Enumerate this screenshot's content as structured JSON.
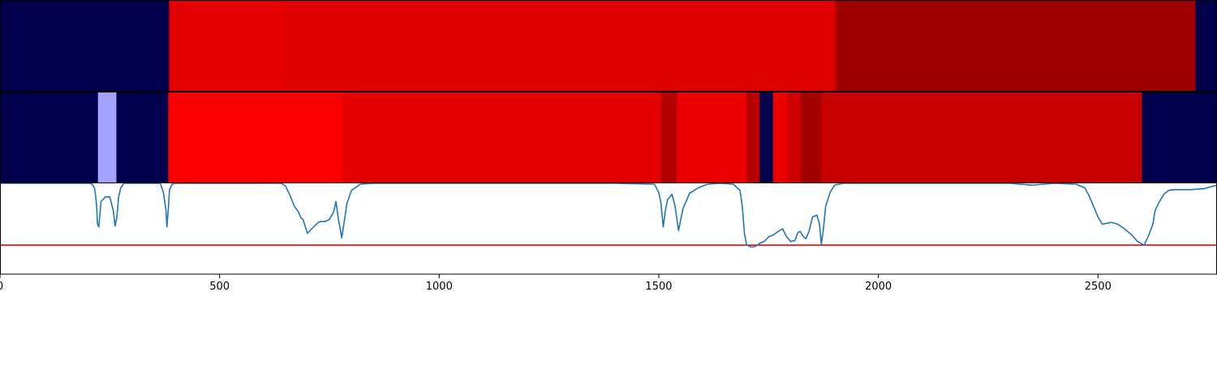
{
  "chart_data": {
    "type": "heatmap",
    "title": "",
    "xlabel": "",
    "ylabel": "",
    "xlim": [
      0,
      2771
    ],
    "x_ticks": [
      0,
      500,
      1000,
      1500,
      2000,
      2500
    ],
    "x_tick_labels": [
      "0",
      "500",
      "1000",
      "1500",
      "2000",
      "2500"
    ],
    "colormap": {
      "name": "seismic",
      "stops": [
        "#00004c",
        "#0000ff",
        "#ffffff",
        "#ff0000",
        "#7f0000"
      ],
      "vmin": 0,
      "vmax": 1
    },
    "heatmap_rows": [
      {
        "segments": [
          {
            "x0": 0,
            "x1": 385,
            "value": 0.0
          },
          {
            "x0": 385,
            "x1": 650,
            "value": 0.8
          },
          {
            "x0": 650,
            "x1": 1902,
            "value": 0.81
          },
          {
            "x0": 1902,
            "x1": 2722,
            "value": 0.94
          },
          {
            "x0": 2722,
            "x1": 2771,
            "value": 0.0
          }
        ]
      },
      {
        "segments": [
          {
            "x0": 0,
            "x1": 223,
            "value": 0.0
          },
          {
            "x0": 223,
            "x1": 265,
            "value": 0.41
          },
          {
            "x0": 265,
            "x1": 383,
            "value": 0.0
          },
          {
            "x0": 383,
            "x1": 780,
            "value": 0.76
          },
          {
            "x0": 780,
            "x1": 1505,
            "value": 0.8
          },
          {
            "x0": 1505,
            "x1": 1541,
            "value": 0.9
          },
          {
            "x0": 1541,
            "x1": 1700,
            "value": 0.79
          },
          {
            "x0": 1700,
            "x1": 1730,
            "value": 0.89
          },
          {
            "x0": 1730,
            "x1": 1760,
            "value": 0.0
          },
          {
            "x0": 1760,
            "x1": 1792,
            "value": 0.79
          },
          {
            "x0": 1792,
            "x1": 1823,
            "value": 0.84
          },
          {
            "x0": 1823,
            "x1": 1870,
            "value": 0.93
          },
          {
            "x0": 1870,
            "x1": 2600,
            "value": 0.86
          },
          {
            "x0": 2600,
            "x1": 2771,
            "value": 0.0
          }
        ]
      }
    ],
    "line_plot": {
      "ylim": [
        0,
        1
      ],
      "threshold": 0.32,
      "threshold_color": "#ff0000",
      "line_color": "#1f77b4",
      "x": [
        0,
        205,
        210,
        215,
        218,
        220,
        222,
        225,
        230,
        240,
        250,
        258,
        262,
        266,
        270,
        275,
        282,
        300,
        365,
        372,
        378,
        380,
        383,
        386,
        392,
        400,
        500,
        600,
        640,
        650,
        660,
        670,
        680,
        685,
        690,
        700,
        710,
        720,
        725,
        730,
        740,
        750,
        760,
        765,
        770,
        775,
        778,
        782,
        790,
        800,
        820,
        850,
        1000,
        1400,
        1490,
        1500,
        1505,
        1510,
        1515,
        1520,
        1530,
        1537,
        1545,
        1555,
        1570,
        1590,
        1610,
        1640,
        1670,
        1685,
        1690,
        1695,
        1700,
        1705,
        1710,
        1715,
        1722,
        1730,
        1740,
        1750,
        1760,
        1772,
        1782,
        1790,
        1800,
        1810,
        1817,
        1822,
        1828,
        1835,
        1842,
        1850,
        1860,
        1866,
        1870,
        1875,
        1880,
        1890,
        1900,
        1920,
        2100,
        2300,
        2350,
        2400,
        2450,
        2470,
        2480,
        2500,
        2510,
        2520,
        2530,
        2545,
        2560,
        2575,
        2590,
        2605,
        2615,
        2625,
        2630,
        2640,
        2650,
        2660,
        2670,
        2690,
        2710,
        2740,
        2771
      ],
      "y": [
        1,
        1,
        0.99,
        0.95,
        0.85,
        0.75,
        0.55,
        0.52,
        0.8,
        0.85,
        0.85,
        0.7,
        0.53,
        0.62,
        0.85,
        0.95,
        1,
        1,
        1,
        0.9,
        0.7,
        0.52,
        0.7,
        0.93,
        0.99,
        1,
        1,
        1,
        1,
        0.97,
        0.87,
        0.75,
        0.68,
        0.62,
        0.6,
        0.45,
        0.5,
        0.55,
        0.57,
        0.58,
        0.58,
        0.6,
        0.69,
        0.8,
        0.62,
        0.49,
        0.4,
        0.52,
        0.78,
        0.92,
        0.99,
        1,
        1,
        1,
        0.99,
        0.9,
        0.78,
        0.52,
        0.7,
        0.82,
        0.88,
        0.75,
        0.48,
        0.72,
        0.89,
        0.95,
        0.99,
        1,
        0.99,
        0.92,
        0.75,
        0.45,
        0.32,
        0.31,
        0.3,
        0.3,
        0.31,
        0.34,
        0.36,
        0.41,
        0.43,
        0.47,
        0.5,
        0.42,
        0.36,
        0.37,
        0.46,
        0.47,
        0.42,
        0.39,
        0.47,
        0.63,
        0.65,
        0.55,
        0.33,
        0.5,
        0.75,
        0.9,
        0.98,
        1,
        1,
        1,
        0.98,
        1,
        0.99,
        0.95,
        0.86,
        0.63,
        0.55,
        0.56,
        0.57,
        0.55,
        0.5,
        0.44,
        0.36,
        0.32,
        0.42,
        0.55,
        0.7,
        0.8,
        0.88,
        0.92,
        0.93,
        0.93,
        0.93,
        0.94,
        0.98,
        1
      ]
    }
  }
}
